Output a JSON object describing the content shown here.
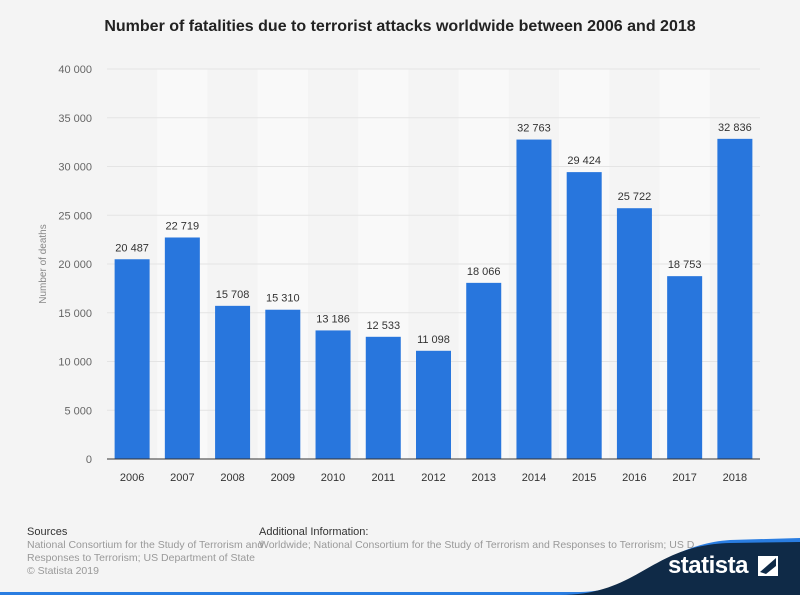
{
  "chart_data": {
    "type": "bar",
    "title": "Number of fatalities due to terrorist attacks worldwide between 2006 and 2018",
    "xlabel": "",
    "ylabel": "Number of deaths",
    "categories": [
      "2006",
      "2007",
      "2008",
      "2009",
      "2010",
      "2011",
      "2012",
      "2013",
      "2014",
      "2015",
      "2016",
      "2017",
      "2018"
    ],
    "values": [
      20487,
      22719,
      15708,
      15310,
      13186,
      12533,
      11098,
      18066,
      32763,
      29424,
      25722,
      18753,
      32836
    ],
    "data_labels": [
      "20 487",
      "22 719",
      "15 708",
      "15 310",
      "13 186",
      "12 533",
      "11 098",
      "18 066",
      "32 763",
      "29 424",
      "25 722",
      "18 753",
      "32 836"
    ],
    "ylim": [
      0,
      40000
    ],
    "yticks": [
      0,
      5000,
      10000,
      15000,
      20000,
      25000,
      30000,
      35000,
      40000
    ],
    "ytick_labels": [
      "0",
      "5 000",
      "10 000",
      "15 000",
      "20 000",
      "25 000",
      "30 000",
      "35 000",
      "40 000"
    ],
    "grid": true,
    "bar_color": "#2876dd"
  },
  "footer": {
    "sources_heading": "Sources",
    "sources_line1": "National Consortium for the Study of Terrorism and",
    "sources_line2": "Responses to Terrorism; US Department of State",
    "copyright": "© Statista 2019",
    "additional_heading": "Additional Information:",
    "additional_text": "Worldwide; National Consortium for the Study of Terrorism and Responses to Terrorism; US D",
    "logo": "statista"
  }
}
